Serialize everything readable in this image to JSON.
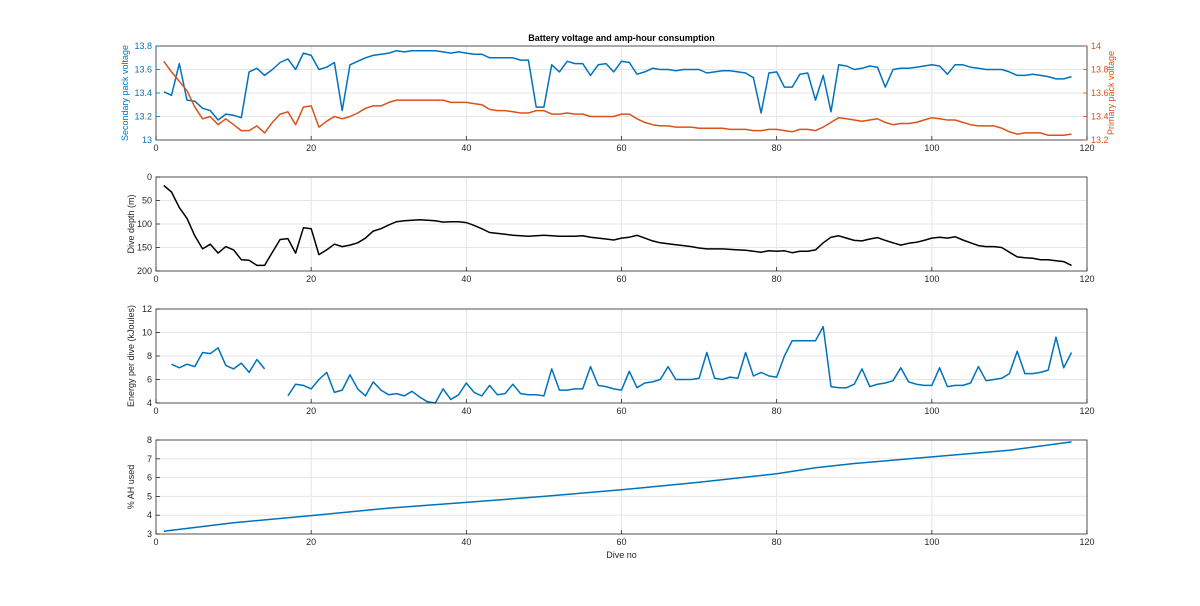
{
  "colors": {
    "blue": "#0072BD",
    "orange": "#D95319",
    "black": "#000000",
    "axis": "#262626",
    "grid": "#e6e6e6"
  },
  "chart_data": [
    {
      "type": "line",
      "title": "Battery voltage and amp-hour consumption",
      "xlabel": "",
      "ylabel": "Secondary pack voltage",
      "ylabel_right": "Primary pack voltage",
      "xlim": [
        0,
        120
      ],
      "ylim": [
        13,
        13.8
      ],
      "ylim_right": [
        13.2,
        14
      ],
      "xticks": [
        0,
        20,
        40,
        60,
        80,
        100,
        120
      ],
      "yticks": [
        13,
        13.2,
        13.4,
        13.6,
        13.8
      ],
      "yticks_right": [
        13.2,
        13.4,
        13.6,
        13.8,
        14
      ],
      "grid": true,
      "series": [
        {
          "axis": "left",
          "color": "#0072BD",
          "x": [
            1,
            2,
            3,
            4,
            5,
            6,
            7,
            8,
            9,
            10,
            11,
            12,
            13,
            14,
            15,
            16,
            17,
            18,
            19,
            20,
            21,
            22,
            23,
            24,
            25,
            26,
            27,
            28,
            29,
            30,
            31,
            32,
            33,
            34,
            35,
            36,
            37,
            38,
            39,
            40,
            41,
            42,
            43,
            44,
            45,
            46,
            47,
            48,
            49,
            50,
            51,
            52,
            53,
            54,
            55,
            56,
            57,
            58,
            59,
            60,
            61,
            62,
            63,
            64,
            65,
            66,
            67,
            68,
            69,
            70,
            71,
            72,
            73,
            74,
            75,
            76,
            77,
            78,
            79,
            80,
            81,
            82,
            83,
            84,
            85,
            86,
            87,
            88,
            89,
            90,
            91,
            92,
            93,
            94,
            95,
            96,
            97,
            98,
            99,
            100,
            101,
            102,
            103,
            104,
            105,
            106,
            107,
            108,
            109,
            110,
            111,
            112,
            113,
            114,
            115,
            116,
            117,
            118
          ],
          "y": [
            13.41,
            13.38,
            13.65,
            13.34,
            13.33,
            13.27,
            13.25,
            13.17,
            13.22,
            13.21,
            13.19,
            13.58,
            13.61,
            13.55,
            13.6,
            13.66,
            13.69,
            13.6,
            13.74,
            13.72,
            13.6,
            13.62,
            13.66,
            13.25,
            13.64,
            13.67,
            13.7,
            13.72,
            13.73,
            13.74,
            13.76,
            13.75,
            13.76,
            13.76,
            13.76,
            13.76,
            13.75,
            13.74,
            13.75,
            13.74,
            13.73,
            13.73,
            13.7,
            13.7,
            13.7,
            13.7,
            13.68,
            13.68,
            13.28,
            13.28,
            13.64,
            13.58,
            13.67,
            13.65,
            13.65,
            13.55,
            13.64,
            13.65,
            13.58,
            13.67,
            13.66,
            13.56,
            13.58,
            13.61,
            13.6,
            13.6,
            13.59,
            13.6,
            13.6,
            13.6,
            13.57,
            13.58,
            13.59,
            13.59,
            13.58,
            13.57,
            13.53,
            13.23,
            13.57,
            13.58,
            13.45,
            13.45,
            13.56,
            13.57,
            13.34,
            13.55,
            13.24,
            13.64,
            13.63,
            13.6,
            13.61,
            13.63,
            13.62,
            13.45,
            13.6,
            13.61,
            13.61,
            13.62,
            13.63,
            13.64,
            13.63,
            13.56,
            13.64,
            13.64,
            13.62,
            13.61,
            13.6,
            13.6,
            13.6,
            13.58,
            13.55,
            13.55,
            13.56,
            13.55,
            13.54,
            13.52,
            13.52,
            13.54
          ]
        },
        {
          "axis": "right",
          "color": "#D95319",
          "x": [
            1,
            2,
            3,
            4,
            5,
            6,
            7,
            8,
            9,
            10,
            11,
            12,
            13,
            14,
            15,
            16,
            17,
            18,
            19,
            20,
            21,
            22,
            23,
            24,
            25,
            26,
            27,
            28,
            29,
            30,
            31,
            32,
            33,
            34,
            35,
            36,
            37,
            38,
            39,
            40,
            41,
            42,
            43,
            44,
            45,
            46,
            47,
            48,
            49,
            50,
            51,
            52,
            53,
            54,
            55,
            56,
            57,
            58,
            59,
            60,
            61,
            62,
            63,
            64,
            65,
            66,
            67,
            68,
            69,
            70,
            71,
            72,
            73,
            74,
            75,
            76,
            77,
            78,
            79,
            80,
            81,
            82,
            83,
            84,
            85,
            86,
            87,
            88,
            89,
            90,
            91,
            92,
            93,
            94,
            95,
            96,
            97,
            98,
            99,
            100,
            101,
            102,
            103,
            104,
            105,
            106,
            107,
            108,
            109,
            110,
            111,
            112,
            113,
            114,
            115,
            116,
            117,
            118
          ],
          "y": [
            13.87,
            13.78,
            13.7,
            13.62,
            13.48,
            13.38,
            13.4,
            13.33,
            13.38,
            13.33,
            13.28,
            13.28,
            13.32,
            13.26,
            13.35,
            13.42,
            13.44,
            13.33,
            13.48,
            13.49,
            13.31,
            13.36,
            13.4,
            13.38,
            13.4,
            13.43,
            13.47,
            13.49,
            13.49,
            13.52,
            13.54,
            13.54,
            13.54,
            13.54,
            13.54,
            13.54,
            13.54,
            13.52,
            13.52,
            13.52,
            13.51,
            13.5,
            13.46,
            13.45,
            13.45,
            13.44,
            13.43,
            13.43,
            13.45,
            13.45,
            13.42,
            13.42,
            13.43,
            13.42,
            13.42,
            13.4,
            13.4,
            13.4,
            13.4,
            13.42,
            13.42,
            13.38,
            13.35,
            13.33,
            13.32,
            13.32,
            13.31,
            13.31,
            13.31,
            13.3,
            13.3,
            13.3,
            13.3,
            13.29,
            13.29,
            13.29,
            13.28,
            13.28,
            13.29,
            13.29,
            13.28,
            13.27,
            13.29,
            13.29,
            13.28,
            13.31,
            13.35,
            13.39,
            13.38,
            13.37,
            13.36,
            13.37,
            13.38,
            13.35,
            13.33,
            13.34,
            13.34,
            13.35,
            13.37,
            13.39,
            13.38,
            13.37,
            13.37,
            13.35,
            13.33,
            13.32,
            13.32,
            13.32,
            13.3,
            13.27,
            13.25,
            13.26,
            13.26,
            13.26,
            13.24,
            13.24,
            13.24,
            13.25
          ]
        }
      ]
    },
    {
      "type": "line",
      "ylabel": "Dive depth (m)",
      "xlim": [
        0,
        120
      ],
      "ylim": [
        0,
        200
      ],
      "y_reversed": true,
      "xticks": [
        0,
        20,
        40,
        60,
        80,
        100,
        120
      ],
      "yticks": [
        0,
        50,
        100,
        150,
        200
      ],
      "grid": true,
      "series": [
        {
          "color": "#000000",
          "x": [
            1,
            2,
            3,
            4,
            5,
            6,
            7,
            8,
            9,
            10,
            11,
            12,
            13,
            14,
            15,
            16,
            17,
            18,
            19,
            20,
            21,
            22,
            23,
            24,
            25,
            26,
            27,
            28,
            29,
            30,
            31,
            32,
            33,
            34,
            35,
            36,
            37,
            38,
            39,
            40,
            41,
            42,
            43,
            44,
            45,
            46,
            47,
            48,
            49,
            50,
            51,
            52,
            53,
            54,
            55,
            56,
            57,
            58,
            59,
            60,
            61,
            62,
            63,
            64,
            65,
            66,
            67,
            68,
            69,
            70,
            71,
            72,
            73,
            74,
            75,
            76,
            77,
            78,
            79,
            80,
            81,
            82,
            83,
            84,
            85,
            86,
            87,
            88,
            89,
            90,
            91,
            92,
            93,
            94,
            95,
            96,
            97,
            98,
            99,
            100,
            101,
            102,
            103,
            104,
            105,
            106,
            107,
            108,
            109,
            110,
            111,
            112,
            113,
            114,
            115,
            116,
            117,
            118
          ],
          "y": [
            18,
            32,
            65,
            88,
            125,
            153,
            143,
            162,
            148,
            155,
            176,
            177,
            188,
            188,
            160,
            133,
            131,
            162,
            108,
            110,
            165,
            155,
            143,
            148,
            145,
            140,
            130,
            115,
            110,
            102,
            95,
            93,
            92,
            91,
            92,
            93,
            96,
            95,
            95,
            97,
            103,
            110,
            118,
            120,
            122,
            124,
            125,
            126,
            125,
            124,
            125,
            126,
            126,
            126,
            125,
            128,
            130,
            132,
            134,
            130,
            128,
            124,
            130,
            136,
            140,
            142,
            144,
            146,
            148,
            151,
            153,
            153,
            153,
            154,
            155,
            156,
            158,
            160,
            157,
            158,
            157,
            161,
            158,
            158,
            155,
            140,
            128,
            125,
            130,
            135,
            136,
            132,
            129,
            135,
            140,
            145,
            141,
            139,
            135,
            130,
            128,
            130,
            127,
            134,
            140,
            146,
            148,
            148,
            150,
            160,
            170,
            172,
            173,
            176,
            176,
            178,
            180,
            188
          ]
        }
      ]
    },
    {
      "type": "line",
      "ylabel": "Energy per dive (kJoules)",
      "xlim": [
        0,
        120
      ],
      "ylim": [
        4,
        12
      ],
      "xticks": [
        0,
        20,
        40,
        60,
        80,
        100,
        120
      ],
      "yticks": [
        4,
        6,
        8,
        10,
        12
      ],
      "grid": true,
      "series": [
        {
          "color": "#0072BD",
          "x": [
            2,
            3,
            4,
            5,
            6,
            7,
            8,
            9,
            10,
            11,
            12,
            13,
            14
          ],
          "y": [
            7.3,
            7.0,
            7.3,
            7.1,
            8.3,
            8.2,
            8.7,
            7.2,
            6.9,
            7.4,
            6.6,
            7.7,
            6.9
          ]
        },
        {
          "color": "#0072BD",
          "x": [
            17,
            18,
            19,
            20,
            21,
            22,
            23,
            24,
            25,
            26,
            27,
            28,
            29,
            30,
            31,
            32,
            33,
            34,
            35,
            36,
            37,
            38,
            39,
            40,
            41,
            42,
            43,
            44,
            45,
            46,
            47,
            48,
            49,
            50,
            51,
            52,
            53,
            54,
            55,
            56,
            57,
            58,
            59,
            60,
            61,
            62,
            63,
            64,
            65,
            66,
            67,
            68,
            69,
            70,
            71,
            72,
            73,
            74,
            75,
            76,
            77,
            78,
            79,
            80,
            81,
            82,
            83,
            84,
            85,
            86,
            87,
            88,
            89,
            90,
            91,
            92,
            93,
            94,
            95,
            96,
            97,
            98,
            99,
            100,
            101,
            102,
            103,
            104,
            105,
            106,
            107,
            108,
            109,
            110,
            111,
            112,
            113,
            114,
            115,
            116,
            117,
            118
          ],
          "y": [
            4.6,
            5.6,
            5.5,
            5.2,
            6.0,
            6.6,
            4.9,
            5.1,
            6.4,
            5.2,
            4.6,
            5.8,
            5.1,
            4.7,
            4.8,
            4.6,
            5.0,
            4.5,
            4.1,
            4.0,
            5.2,
            4.3,
            4.7,
            5.7,
            4.9,
            4.6,
            5.5,
            4.7,
            4.8,
            5.6,
            4.8,
            4.7,
            4.7,
            4.6,
            6.9,
            5.1,
            5.1,
            5.2,
            5.2,
            7.1,
            5.5,
            5.4,
            5.2,
            5.1,
            6.7,
            5.3,
            5.7,
            5.8,
            6.0,
            7.1,
            6.0,
            6.0,
            6.0,
            6.1,
            8.3,
            6.1,
            6.0,
            6.2,
            6.1,
            8.3,
            6.3,
            6.6,
            6.3,
            6.2,
            8.0,
            9.3,
            9.3,
            9.3,
            9.3,
            10.5,
            5.4,
            5.3,
            5.3,
            5.6,
            6.9,
            5.4,
            5.6,
            5.7,
            5.9,
            7.0,
            5.8,
            5.6,
            5.5,
            5.5,
            7.0,
            5.4,
            5.5,
            5.5,
            5.7,
            7.1,
            5.9,
            6.0,
            6.1,
            6.5,
            8.4,
            6.5,
            6.5,
            6.6,
            6.8,
            9.6,
            7.0,
            8.3
          ]
        }
      ]
    },
    {
      "type": "line",
      "xlabel": "Dive no",
      "ylabel": "% AH used",
      "xlim": [
        0,
        120
      ],
      "ylim": [
        3,
        8
      ],
      "xticks": [
        0,
        20,
        40,
        60,
        80,
        100,
        120
      ],
      "yticks": [
        3,
        4,
        5,
        6,
        7,
        8
      ],
      "grid": true,
      "series": [
        {
          "color": "#0072BD",
          "x": [
            1,
            10,
            20,
            30,
            40,
            50,
            60,
            70,
            80,
            85,
            90,
            100,
            110,
            118
          ],
          "y": [
            3.15,
            3.6,
            3.98,
            4.38,
            4.68,
            5.0,
            5.35,
            5.75,
            6.2,
            6.52,
            6.75,
            7.1,
            7.45,
            7.9
          ]
        }
      ]
    }
  ]
}
